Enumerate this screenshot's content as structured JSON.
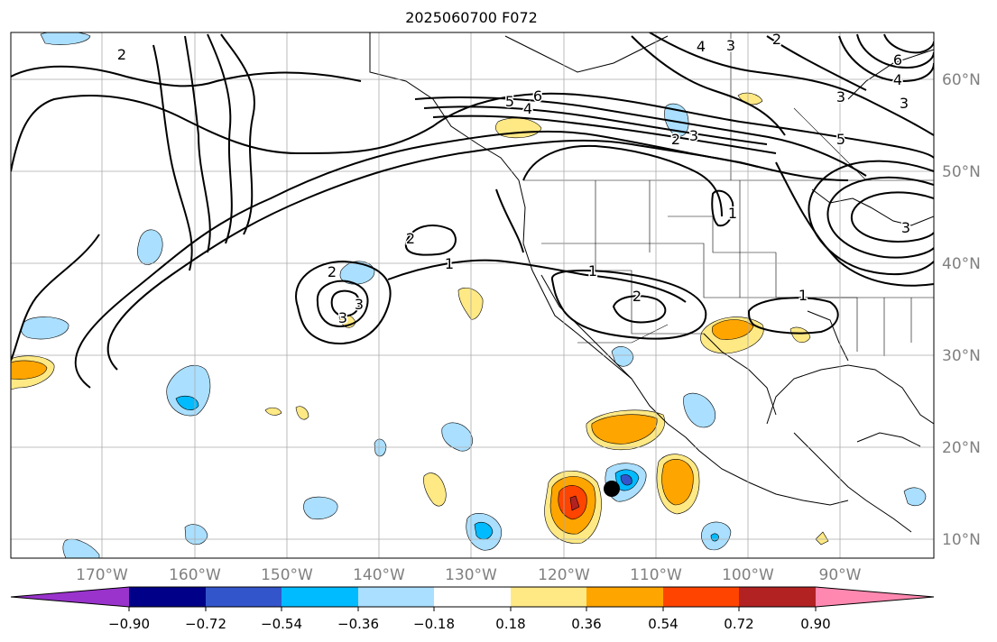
{
  "title": "2025060700 F072",
  "lon_labels": [
    "170°W",
    "160°W",
    "150°W",
    "140°W",
    "130°W",
    "120°W",
    "110°W",
    "100°W",
    "90°W"
  ],
  "lat_labels": [
    "60°N",
    "50°N",
    "40°N",
    "30°N",
    "20°N",
    "10°N"
  ],
  "colorbar": {
    "ticks": [
      "−0.90",
      "−0.72",
      "−0.54",
      "−0.36",
      "−0.18",
      "0.18",
      "0.36",
      "0.54",
      "0.72",
      "0.90"
    ],
    "colors": [
      "#9933cc",
      "#000088",
      "#3355cc",
      "#00bbff",
      "#aadfff",
      "#ffffff",
      "#ffe985",
      "#ffa500",
      "#ff4400",
      "#b22222",
      "#ff88b0"
    ]
  },
  "contour_labels": [
    "2",
    "5",
    "6",
    "4",
    "3",
    "4",
    "3",
    "2",
    "6",
    "4",
    "3",
    "5",
    "3",
    "2",
    "3",
    "1",
    "2",
    "2",
    "3",
    "1",
    "1",
    "2",
    "1",
    "3"
  ],
  "colors": {
    "axis_label": "#808080",
    "grid": "#aaaaaa",
    "contour": "#000000",
    "marker": "#000000"
  }
}
